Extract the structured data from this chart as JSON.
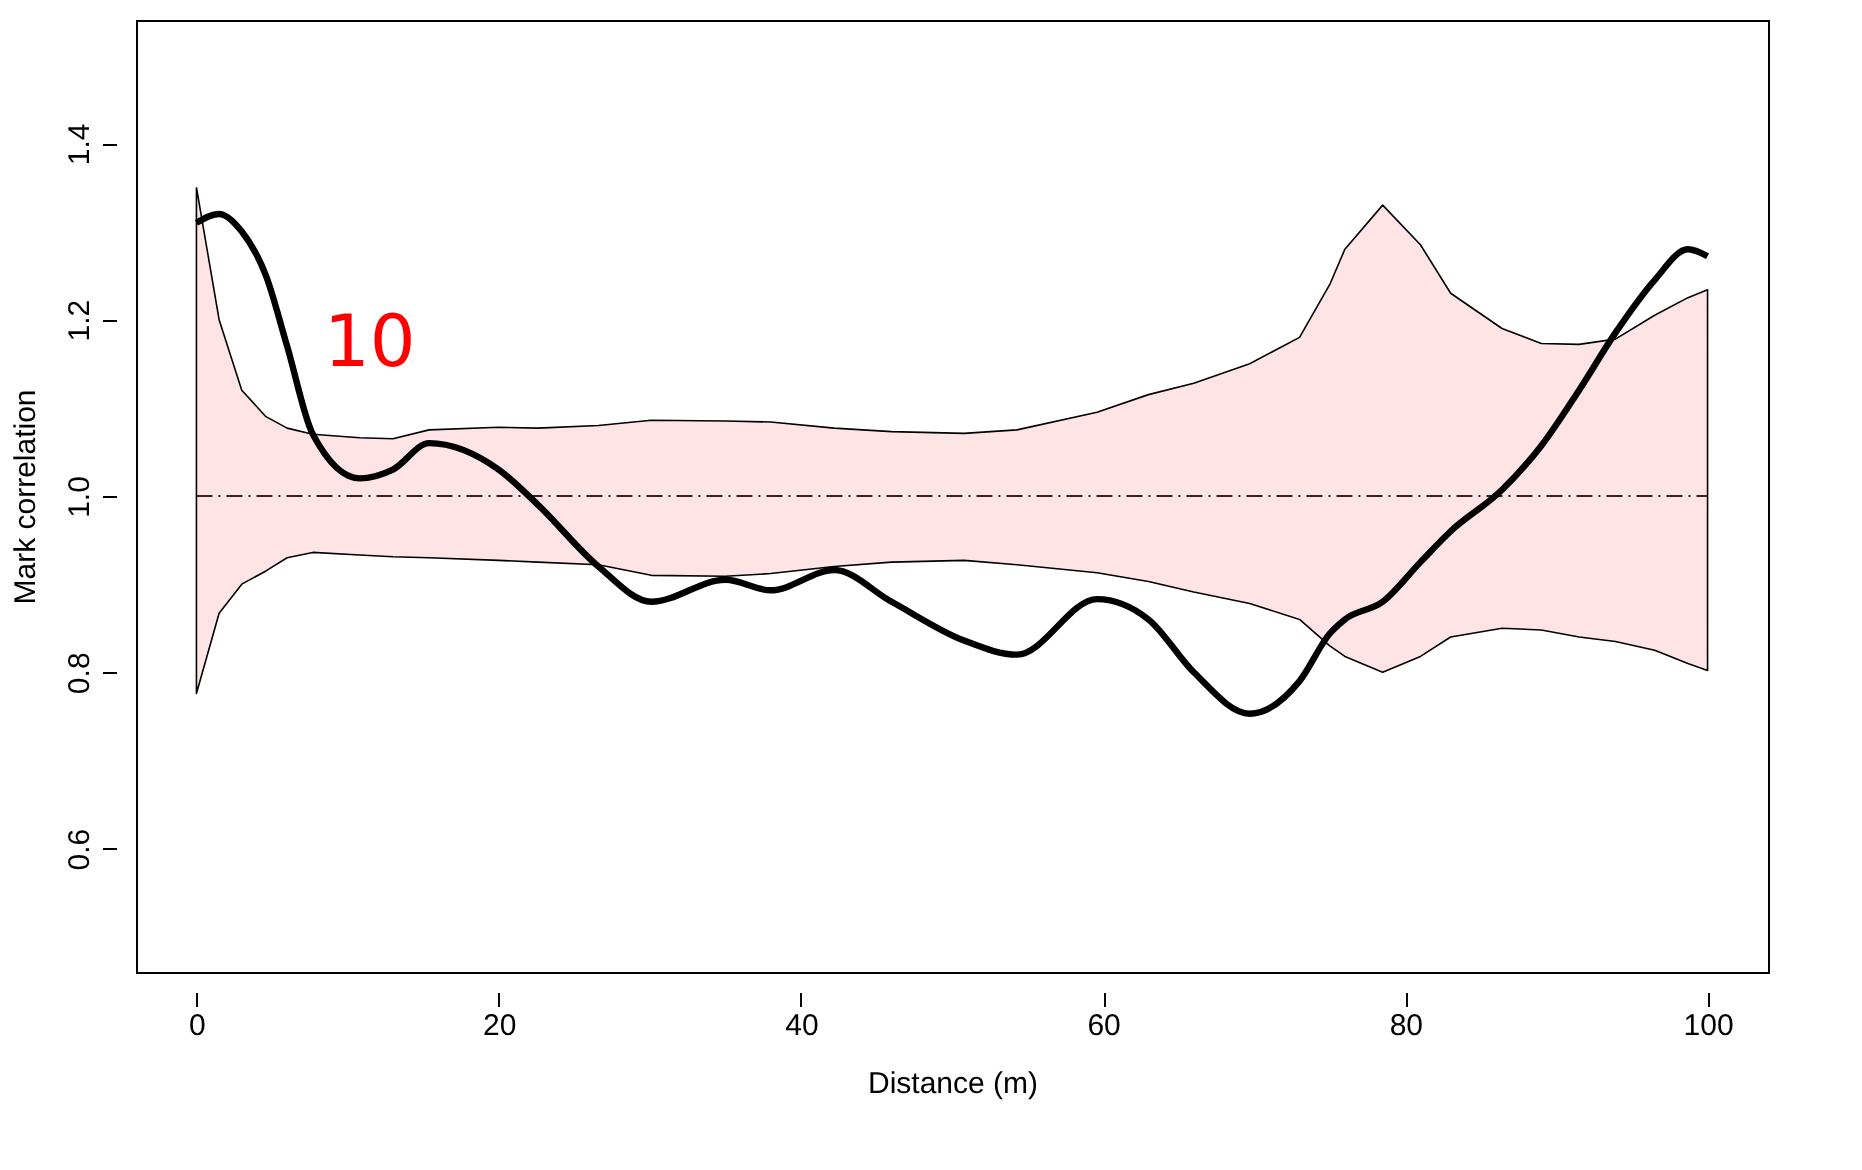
{
  "chart_data": {
    "type": "line",
    "xlabel": "Distance (m)",
    "ylabel": "Mark correlation",
    "annotations": [
      "10"
    ],
    "xlim": [
      -4,
      104
    ],
    "xticks": [
      0,
      20,
      40,
      60,
      80,
      100
    ],
    "ylim": [
      0.46,
      1.54
    ],
    "yticks": [
      {
        "value": 0.6,
        "label": "0.6"
      },
      {
        "value": 0.8,
        "label": "0.8"
      },
      {
        "value": 1.0,
        "label": "1.0"
      },
      {
        "value": 1.2,
        "label": "1.2"
      },
      {
        "value": 1.4,
        "label": "1.4"
      }
    ],
    "grid": false,
    "marker": "none",
    "line_style": "solid",
    "ref_lines": [
      {
        "axis": "y",
        "value": 1.0,
        "color": "#3c1f1f",
        "line_style": "dashdot"
      }
    ],
    "series": [
      {
        "color": "#000000",
        "x": [
          0,
          1.5,
          3,
          4.6,
          6,
          7.7,
          10.8,
          13,
          15.4,
          20,
          22.6,
          26.6,
          30.1,
          35,
          38,
          42.2,
          46,
          50.8,
          54.3,
          59.6,
          63,
          66,
          69.7,
          73,
          75,
          76,
          78.5,
          81,
          83,
          86.4,
          89,
          91.5,
          93.9,
          96.5,
          98.7,
          100
        ],
        "values": [
          1.31,
          1.32,
          1.3,
          1.25,
          1.17,
          1.07,
          1.02,
          1.03,
          1.06,
          1.03,
          0.99,
          0.92,
          0.88,
          0.905,
          0.893,
          0.916,
          0.88,
          0.836,
          0.82,
          0.883,
          0.86,
          0.8,
          0.753,
          0.79,
          0.844,
          0.86,
          0.88,
          0.925,
          0.96,
          1.007,
          1.057,
          1.12,
          1.185,
          1.245,
          1.28,
          1.272
        ],
        "upper": [
          1.35,
          1.2,
          1.12,
          1.09,
          1.077,
          1.07,
          1.066,
          1.065,
          1.075,
          1.078,
          1.077,
          1.08,
          1.086,
          1.085,
          1.084,
          1.077,
          1.073,
          1.071,
          1.075,
          1.095,
          1.115,
          1.128,
          1.15,
          1.18,
          1.24,
          1.28,
          1.33,
          1.285,
          1.23,
          1.19,
          1.173,
          1.172,
          1.178,
          1.205,
          1.225,
          1.234
        ],
        "lower": [
          0.776,
          0.867,
          0.9,
          0.915,
          0.93,
          0.936,
          0.933,
          0.931,
          0.93,
          0.927,
          0.925,
          0.922,
          0.91,
          0.909,
          0.912,
          0.92,
          0.925,
          0.927,
          0.922,
          0.913,
          0.903,
          0.891,
          0.878,
          0.86,
          0.83,
          0.818,
          0.8,
          0.818,
          0.84,
          0.85,
          0.848,
          0.84,
          0.835,
          0.825,
          0.81,
          0.802
        ]
      }
    ]
  }
}
